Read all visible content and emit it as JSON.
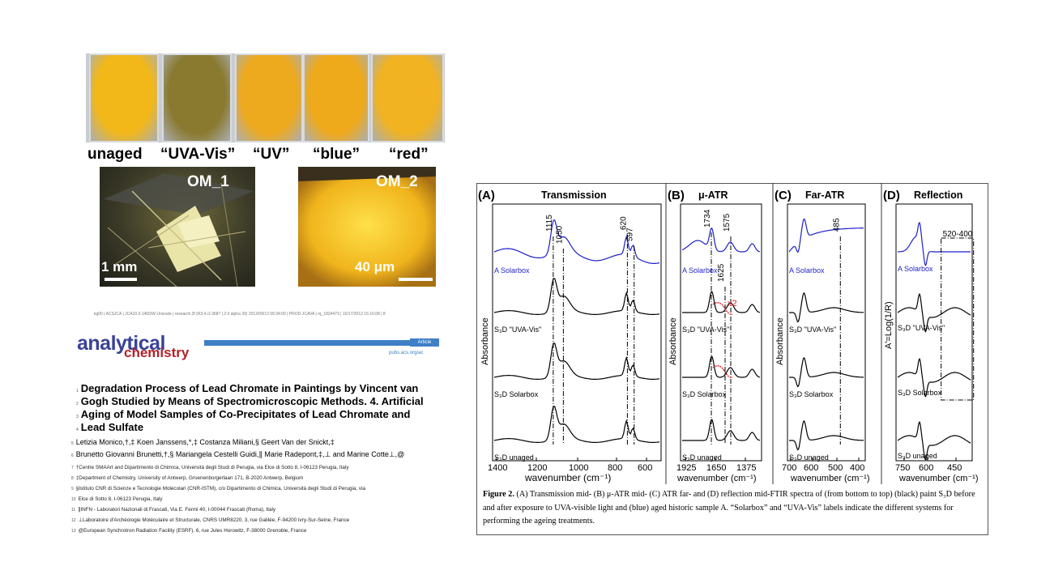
{
  "samples": {
    "labels": [
      "unaged",
      "“UVA-Vis”",
      "“UV”",
      "“blue”",
      "“red”"
    ],
    "colors": [
      "#f2b81a",
      "#8a7a30",
      "#eeaa1e",
      "#efaa1c",
      "#f1b322"
    ]
  },
  "micrographs": {
    "om1": {
      "title": "OM_1",
      "scale": "1 mm"
    },
    "om2": {
      "title": "OM_2",
      "scale": "40 μm"
    }
  },
  "paper": {
    "header_line": "kg00 | ACSJCA | JCA10.0.1465/W Unicode | research.3f (R3.4.i1:3687 | 2.0 alpha 39) 2012/09/13 09:34:00 | PROD-JCAVA | rq_1824473 | 10/17/2012 15:16:08 | 8",
    "journal_top": "analytical",
    "journal_bottom": "chemistry",
    "article_tag": "Article",
    "pubs_url": "pubs.acs.org/ac",
    "title_lines": [
      {
        "n": "1",
        "t": "Degradation Process of Lead Chromate in Paintings by Vincent van"
      },
      {
        "n": "2",
        "t": "Gogh Studied by Means of Spectromicroscopic Methods. 4. Artificial"
      },
      {
        "n": "3",
        "t": "Aging of Model Samples of Co-Precipitates of Lead Chromate and"
      },
      {
        "n": "4",
        "t": "Lead Sulfate"
      }
    ],
    "authors_lines": [
      {
        "n": "5",
        "t": "Letizia Monico,†,‡ Koen Janssens,*,‡ Costanza Miliani,§ Geert Van der Snickt,‡"
      },
      {
        "n": "6",
        "t": "Brunetto Giovanni Brunetti,†,§ Mariangela Cestelli Guidi,∥ Marie Radepont,‡,⊥ and Marine Cotte⊥,@"
      }
    ],
    "affiliations": [
      {
        "n": "7",
        "t": "†Centre SMAArt and Dipartimento di Chimica, Università degli Studi di Perugia, via Elce di Sotto 8, I-06123 Perugia, Italy"
      },
      {
        "n": "8",
        "t": "‡Department of Chemistry, University of Antwerp, Groenenborgerlaan 171, B-2020 Antwerp, Belgium"
      },
      {
        "n": "9",
        "t": "§Istituto CNR di Scienze e Tecnologie Molecolari (CNR-ISTM), c/o Dipartimento di Chimica, Università degli Studi di Perugia, via"
      },
      {
        "n": "10",
        "t": "Elce di Sotto 8, I-06123 Perugia, Italy"
      },
      {
        "n": "11",
        "t": "∥INFN - Laboratori Nazionali di Frascati, Via E. Fermi 40, I-00044 Frascati (Roma), Italy"
      },
      {
        "n": "12",
        "t": "⊥Laboratoire d'Archéologie Moléculaire et Structurale, CNRS UMR8220, 3, rue Galilée, F-94200 Ivry-Sur-Seine, France"
      },
      {
        "n": "13",
        "t": "@European Synchrotron Radiation Facility (ESRF), 6, rue Jules Horowitz, F-38000 Grenoble, France"
      }
    ]
  },
  "figure": {
    "panels": [
      {
        "letter": "(A)",
        "title": "Transmission",
        "ylabel": "Absorbance",
        "xlabel": "wavenumber (cm⁻¹)",
        "ticks": [
          "1400",
          "1200",
          "1000",
          "800",
          "600"
        ],
        "peaks": [
          "1115",
          "1050",
          "620",
          "597"
        ],
        "traces": [
          "A Solarbox",
          "S₃D \"UVA-Vis\"",
          "S₃D Solarbox",
          "S₃D unaged"
        ]
      },
      {
        "letter": "(B)",
        "title": "μ-ATR",
        "ylabel": "Absorbance",
        "xlabel": "wavenumber (cm⁻¹)",
        "ticks": [
          "1925",
          "1650",
          "1375"
        ],
        "peaks": [
          "1734",
          "1575",
          "1625"
        ],
        "multiplier": "x2",
        "traces": [
          "A Solarbox",
          "S₃D \"UVA-Vis\"",
          "S₃D Solarbox",
          "S₃D unaged"
        ]
      },
      {
        "letter": "(C)",
        "title": "Far-ATR",
        "ylabel": "Absorbance",
        "xlabel": "wavenumber (cm⁻¹)",
        "ticks": [
          "700",
          "600",
          "500",
          "400"
        ],
        "peaks": [
          "485"
        ],
        "traces": [
          "A Solarbox",
          "S₃D \"UVA-Vis\"",
          "S₃D Solarbox",
          "S₃D unaged"
        ]
      },
      {
        "letter": "(D)",
        "title": "Reflection",
        "ylabel": "A'=Log(1/R)",
        "xlabel": "wavenumber (cm⁻¹)",
        "ticks": [
          "750",
          "600",
          "450"
        ],
        "peaks": [
          "520-400"
        ],
        "traces": [
          "A Solarbox",
          "S₃D \"UVA-Vis\"",
          "S₃D Solarbox",
          "S₃D unaged"
        ]
      }
    ],
    "caption_label": "Figure 2.",
    "caption_text": "(A) Transmission mid- (B) μ-ATR mid- (C) ATR far- and (D) reflection mid-FTIR spectra of (from bottom to top) (black) paint S₃D before and after exposure to UVA-visible light and (blue) aged historic sample A. “Solarbox” and “UVA-Vis” labels indicate the different systems for performing the ageing treatments.",
    "colors": {
      "aged": "#1f1fc8",
      "model": "#000000",
      "highlight": "#d62020"
    }
  }
}
